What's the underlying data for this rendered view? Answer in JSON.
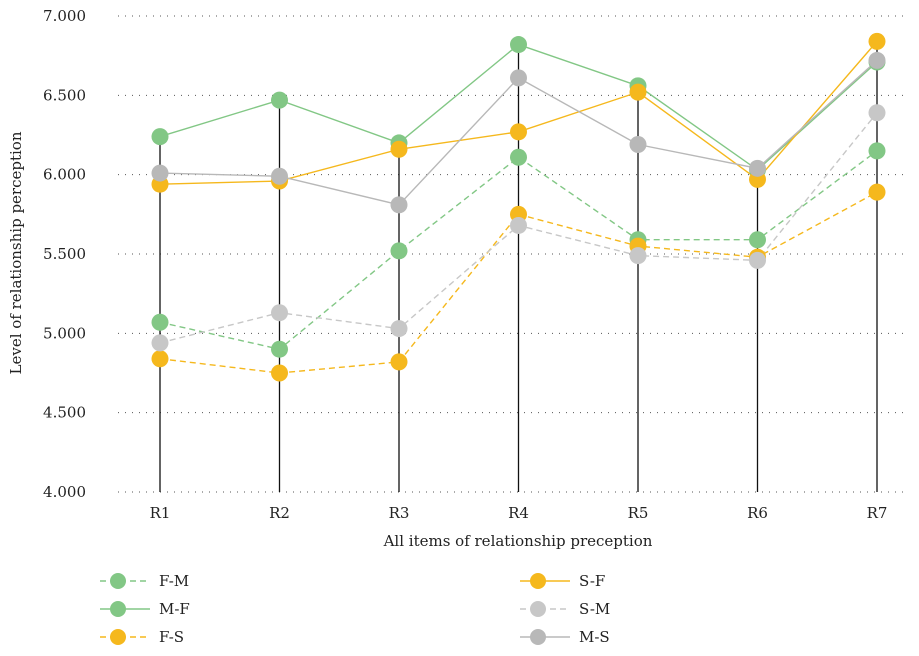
{
  "chart_data": {
    "type": "line",
    "xlabel": "All items of relationship preception",
    "ylabel": "Level of relationship perception",
    "ylim": [
      4.0,
      7.0
    ],
    "y_ticks": [
      "4.000",
      "4.500",
      "5.000",
      "5.500",
      "6.000",
      "6.500",
      "7.000"
    ],
    "y_tick_values": [
      4.0,
      4.5,
      5.0,
      5.5,
      6.0,
      6.5,
      7.0
    ],
    "categories": [
      "R1",
      "R2",
      "R3",
      "R4",
      "R5",
      "R6",
      "R7"
    ],
    "grid": "horizontal dotted",
    "drop_lines": true,
    "legend_position": "bottom",
    "series": [
      {
        "name": "F-M",
        "color": "#82c785",
        "line_style": "dashed",
        "values": [
          5.07,
          4.9,
          5.52,
          6.11,
          5.59,
          5.59,
          6.15
        ]
      },
      {
        "name": "M-F",
        "color": "#82c785",
        "line_style": "solid",
        "values": [
          6.24,
          6.47,
          6.2,
          6.82,
          6.56,
          6.03,
          6.71
        ]
      },
      {
        "name": "F-S",
        "color": "#f5b81d",
        "line_style": "dashed",
        "values": [
          4.84,
          4.75,
          4.82,
          5.75,
          5.55,
          5.48,
          5.89
        ]
      },
      {
        "name": "S-F",
        "color": "#f5b81d",
        "line_style": "solid",
        "values": [
          5.94,
          5.96,
          6.16,
          6.27,
          6.52,
          5.97,
          6.84
        ]
      },
      {
        "name": "S-M",
        "color": "#c7c7c7",
        "line_style": "dashed",
        "values": [
          4.94,
          5.13,
          5.03,
          5.68,
          5.49,
          5.46,
          6.39
        ]
      },
      {
        "name": "M-S",
        "color": "#b8b8b8",
        "line_style": "solid",
        "values": [
          6.01,
          5.99,
          5.81,
          6.61,
          6.19,
          6.04,
          6.72
        ]
      }
    ]
  }
}
